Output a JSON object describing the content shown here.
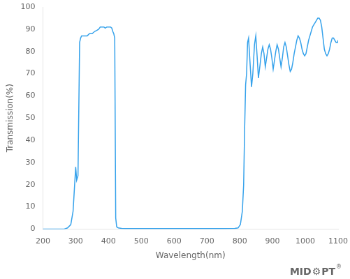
{
  "chart_data": {
    "type": "line",
    "xlabel": "Wavelength(nm)",
    "ylabel": "Transmission(%)",
    "xlim": [
      200,
      1100
    ],
    "ylim": [
      0,
      100
    ],
    "xticks": [
      200,
      300,
      400,
      500,
      600,
      700,
      800,
      900,
      1000,
      1100
    ],
    "yticks": [
      0,
      10,
      20,
      30,
      40,
      50,
      60,
      70,
      80,
      90,
      100
    ],
    "grid": false,
    "annotations": [
      "MID",
      "⚙",
      "PT",
      "®"
    ],
    "x": [
      200,
      265,
      275,
      285,
      292,
      296,
      300,
      303,
      307,
      312,
      315,
      318,
      322,
      328,
      335,
      342,
      350,
      358,
      365,
      370,
      375,
      378,
      382,
      386,
      390,
      395,
      398,
      402,
      406,
      410,
      413,
      416,
      419,
      422,
      425,
      430,
      440,
      450,
      500,
      550,
      600,
      650,
      700,
      750,
      785,
      795,
      802,
      808,
      812,
      815,
      818,
      821,
      824,
      827,
      831,
      836,
      840,
      845,
      849,
      853,
      857,
      862,
      866,
      870,
      874,
      878,
      882,
      886,
      890,
      894,
      898,
      902,
      906,
      910,
      914,
      918,
      922,
      926,
      930,
      934,
      938,
      942,
      946,
      950,
      954,
      958,
      962,
      966,
      970,
      974,
      978,
      982,
      986,
      990,
      994,
      998,
      1002,
      1006,
      1010,
      1014,
      1018,
      1022,
      1026,
      1030,
      1034,
      1038,
      1042,
      1046,
      1050,
      1054,
      1058,
      1062,
      1066,
      1070,
      1074,
      1078,
      1082,
      1086,
      1090,
      1094,
      1098,
      1100
    ],
    "values": [
      0,
      0,
      0.5,
      2,
      8,
      18,
      28,
      22,
      24,
      84,
      86,
      87,
      87,
      87,
      87,
      88,
      88,
      89,
      89.5,
      90,
      91,
      91,
      91,
      91,
      90.5,
      91,
      91,
      91,
      91,
      90.5,
      89,
      88,
      86,
      5,
      1,
      0.5,
      0.3,
      0.2,
      0.2,
      0.2,
      0.2,
      0.2,
      0.2,
      0.2,
      0.3,
      0.5,
      2,
      8,
      20,
      45,
      65,
      70,
      84,
      86,
      76,
      64,
      70,
      83,
      87,
      78,
      68,
      74,
      79,
      82,
      79,
      73,
      77,
      81,
      83,
      81,
      77,
      72,
      76,
      80,
      83,
      81,
      77,
      73,
      77,
      82,
      84,
      82,
      78,
      74,
      71,
      72,
      75,
      79,
      82,
      85,
      87,
      86,
      84,
      81,
      79,
      78,
      79,
      82,
      85,
      87,
      89,
      91,
      92,
      93,
      94,
      95,
      95,
      94,
      91,
      86,
      81,
      79,
      78,
      79,
      81,
      84,
      86,
      86,
      85,
      84,
      84,
      85
    ]
  }
}
